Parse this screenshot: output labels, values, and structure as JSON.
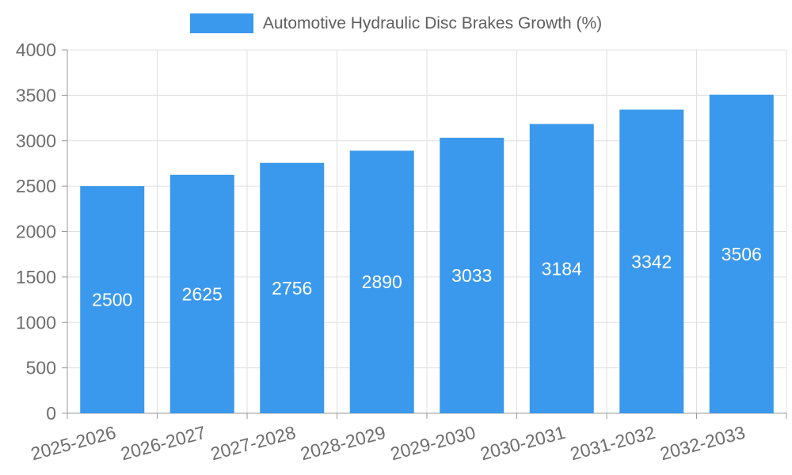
{
  "chart_data": {
    "type": "bar",
    "title": "Automotive Hydraulic Disc Brakes Growth (%)",
    "categories": [
      "2025-2026",
      "2026-2027",
      "2027-2028",
      "2028-2029",
      "2029-2030",
      "2030-2031",
      "2031-2032",
      "2032-2033"
    ],
    "values": [
      2500,
      2625,
      2756,
      2890,
      3033,
      3184,
      3342,
      3506
    ],
    "xlabel": "",
    "ylabel": "",
    "ylim": [
      0,
      4000
    ],
    "y_ticks": [
      0,
      500,
      1000,
      1500,
      2000,
      2500,
      3000,
      3500,
      4000
    ],
    "grid": true,
    "legend_position": "top",
    "x_label_rotation_deg": -15,
    "colors": {
      "bar": "#3A99EC",
      "grid_line": "#E0E0E0",
      "axis_line": "#9B9B9B",
      "axis_label": "#6E6E6E",
      "value_label": "#FFFFFF",
      "legend_text": "#5E5E5E"
    }
  }
}
